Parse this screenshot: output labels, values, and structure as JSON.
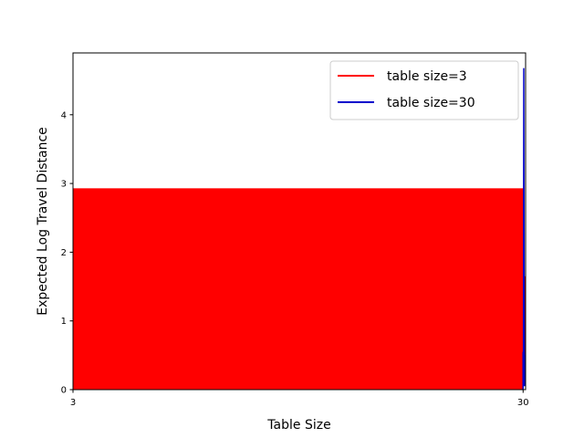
{
  "chart_data": {
    "type": "line",
    "xlabel": "Table Size",
    "ylabel": "Expected Log Travel Distance",
    "xlim": [
      3,
      30.15
    ],
    "ylim": [
      0,
      4.9
    ],
    "x_ticks": [
      3,
      30
    ],
    "y_ticks": [
      0,
      1,
      2,
      3,
      4
    ],
    "grid": false,
    "legend_position": "top-right",
    "series": [
      {
        "name": "table size=3",
        "color": "#ff0000",
        "style": "dense oscillating line, appears as filled band",
        "band": {
          "x_start": 3,
          "x_end": 30,
          "y_low": 0,
          "y_high": 2.93
        },
        "tail": [
          [
            30,
            2.93
          ],
          [
            30.05,
            1.6
          ],
          [
            30.1,
            0.3
          ],
          [
            30.1,
            1.65
          ]
        ]
      },
      {
        "name": "table size=30",
        "color": "#0000cc",
        "points": [
          [
            30,
            0
          ],
          [
            30,
            0.55
          ],
          [
            30.02,
            0.2
          ],
          [
            30.04,
            4.68
          ],
          [
            30.06,
            1.6
          ],
          [
            30.08,
            0.05
          ],
          [
            30.1,
            0.5
          ]
        ]
      }
    ]
  }
}
